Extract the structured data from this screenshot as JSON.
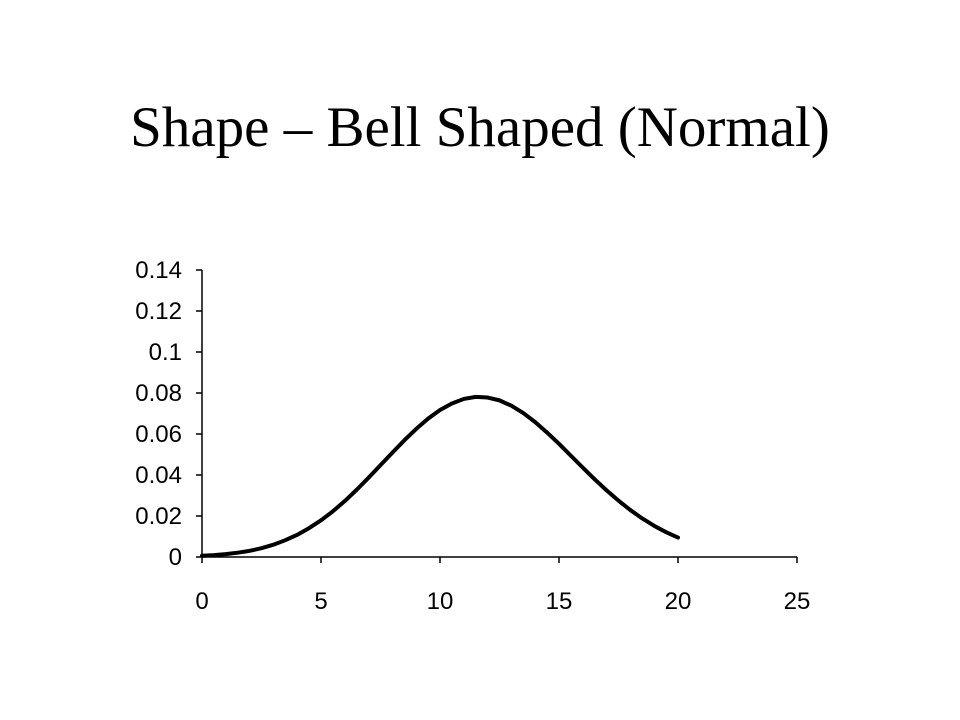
{
  "slide": {
    "title": "Shape – Bell Shaped (Normal)"
  },
  "chart_data": {
    "type": "line",
    "title": "",
    "xlabel": "",
    "ylabel": "",
    "xlim": [
      0,
      25
    ],
    "ylim": [
      0,
      0.14
    ],
    "x_ticks": [
      0,
      5,
      10,
      15,
      20,
      25
    ],
    "x_tick_labels": [
      "0",
      "5",
      "10",
      "15",
      "20",
      "25"
    ],
    "y_ticks": [
      0,
      0.02,
      0.04,
      0.06,
      0.08,
      0.1,
      0.12,
      0.14
    ],
    "y_tick_labels": [
      "0",
      "0.02",
      "0.04",
      "0.06",
      "0.08",
      "0.1",
      "0.12",
      "0.14"
    ],
    "grid": false,
    "legend": "none",
    "line_color": "#000000",
    "series": [
      {
        "x": [
          0,
          0.5,
          1,
          1.5,
          2,
          2.5,
          3,
          3.5,
          4,
          4.5,
          5,
          5.5,
          6,
          6.5,
          7,
          7.5,
          8,
          8.5,
          9,
          9.5,
          10,
          10.5,
          11,
          11.5,
          12,
          12.5,
          13,
          13.5,
          14,
          14.5,
          15,
          15.5,
          16,
          16.5,
          17,
          17.5,
          18,
          18.5,
          19,
          19.5,
          20
        ],
        "y": [
          0.0006,
          0.0009,
          0.0014,
          0.0021,
          0.003,
          0.0043,
          0.006,
          0.0082,
          0.0108,
          0.0141,
          0.0179,
          0.0223,
          0.0273,
          0.0328,
          0.0387,
          0.0448,
          0.0509,
          0.0569,
          0.0625,
          0.0675,
          0.0717,
          0.0749,
          0.0771,
          0.0781,
          0.0778,
          0.0764,
          0.0738,
          0.0702,
          0.0658,
          0.0607,
          0.0552,
          0.0494,
          0.0436,
          0.0379,
          0.0325,
          0.0275,
          0.0229,
          0.0188,
          0.0152,
          0.0121,
          0.0095
        ]
      }
    ]
  }
}
